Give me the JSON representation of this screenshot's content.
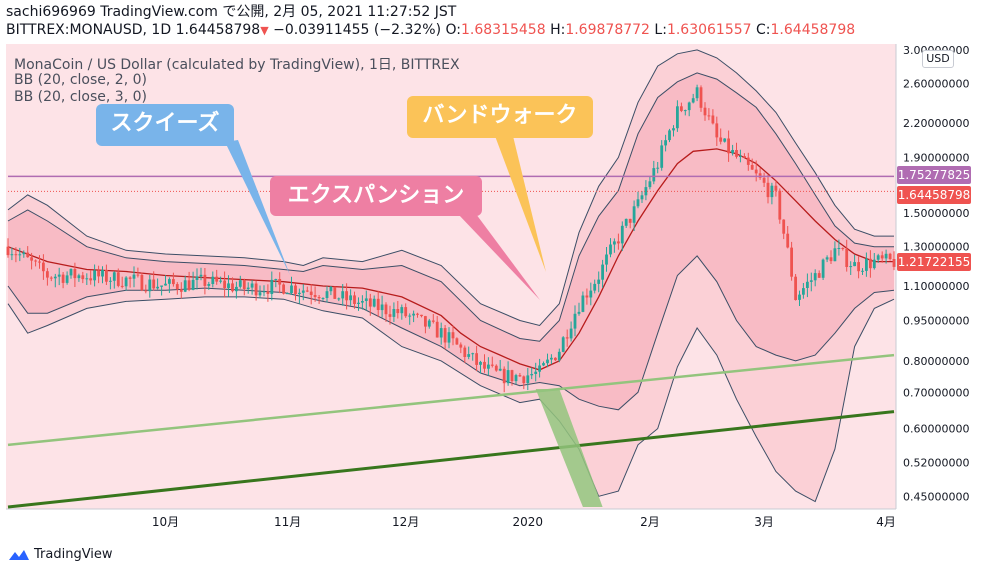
{
  "header": {
    "line1": "sachi696969 TradingView.com で公開, 2月 05, 2021 11:27:52 JST",
    "symbol": "BITTREX:MONAUSD, 1D 1.64458798",
    "change": "−0.03911455 (−2.32%)",
    "o_label": "O:",
    "o_value": "1.68315458",
    "h_label": "H:",
    "h_value": "1.69878772",
    "l_label": "L:",
    "l_value": "1.63061557",
    "c_label": "C:",
    "c_value": "1.64458798"
  },
  "legend": {
    "title": "MonaCoin / US Dollar (calculated by TradingView), 1日, BITTREX",
    "bb1": "BB (20, close, 2, 0)",
    "bb2": "BB (20, close, 3, 0)"
  },
  "annotations": {
    "squeeze": "スクイーズ",
    "expansion": "エクスパンション",
    "band_walk": "バンドウォーク"
  },
  "price_axis": {
    "currency": "USD",
    "tags": {
      "hline": "1.75277825",
      "close": "1.64458798",
      "mid": "1.21722155"
    }
  },
  "branding": {
    "logo_text": "TradingView"
  },
  "colors": {
    "background": "#fde3e7",
    "up": "#26a69a",
    "down": "#ef5350",
    "basis": "#b71c1c",
    "band_line": "#3c4e66",
    "hline": "#b06cb2",
    "trend_light": "#93c47d",
    "trend_dark": "#38761d"
  },
  "chart_data": {
    "type": "line",
    "scale": "log",
    "ylim": [
      0.43,
      3.05
    ],
    "yticks": [
      "3.00000000",
      "2.60000000",
      "2.20000000",
      "1.90000000",
      "1.50000000",
      "1.30000000",
      "1.10000000",
      "0.95000000",
      "0.80000000",
      "0.70000000",
      "0.60000000",
      "0.52000000",
      "0.45000000"
    ],
    "ytick_values": [
      3.0,
      2.6,
      2.2,
      1.9,
      1.5,
      1.3,
      1.1,
      0.95,
      0.8,
      0.7,
      0.6,
      0.52,
      0.45
    ],
    "xticks": [
      "10月",
      "11月",
      "12月",
      "2020",
      "2月",
      "3月",
      "4月"
    ],
    "xtick_days": [
      40,
      71,
      101,
      132,
      163,
      192,
      223
    ],
    "day_range": [
      0,
      225
    ],
    "horizontal_line": 1.75277825,
    "series": [
      {
        "name": "BB (20, close, 2, 0)",
        "kind": "basis",
        "points": [
          [
            0,
            1.3
          ],
          [
            10,
            1.22
          ],
          [
            20,
            1.18
          ],
          [
            30,
            1.17
          ],
          [
            40,
            1.15
          ],
          [
            50,
            1.14
          ],
          [
            60,
            1.13
          ],
          [
            70,
            1.12
          ],
          [
            80,
            1.1
          ],
          [
            90,
            1.09
          ],
          [
            100,
            1.05
          ],
          [
            110,
            0.97
          ],
          [
            115,
            0.9
          ],
          [
            120,
            0.85
          ],
          [
            125,
            0.82
          ],
          [
            130,
            0.79
          ],
          [
            135,
            0.77
          ],
          [
            140,
            0.8
          ],
          [
            145,
            0.9
          ],
          [
            150,
            1.05
          ],
          [
            155,
            1.25
          ],
          [
            160,
            1.45
          ],
          [
            165,
            1.65
          ],
          [
            170,
            1.85
          ],
          [
            174,
            1.95
          ],
          [
            180,
            1.97
          ],
          [
            185,
            1.93
          ],
          [
            190,
            1.85
          ],
          [
            195,
            1.72
          ],
          [
            200,
            1.58
          ],
          [
            205,
            1.45
          ],
          [
            210,
            1.34
          ],
          [
            215,
            1.26
          ],
          [
            220,
            1.22
          ],
          [
            225,
            1.22
          ]
        ]
      },
      {
        "name": "upper2",
        "kind": "band",
        "points": [
          [
            0,
            1.45
          ],
          [
            5,
            1.52
          ],
          [
            10,
            1.45
          ],
          [
            20,
            1.3
          ],
          [
            30,
            1.24
          ],
          [
            40,
            1.22
          ],
          [
            50,
            1.21
          ],
          [
            60,
            1.2
          ],
          [
            70,
            1.18
          ],
          [
            75,
            1.17
          ],
          [
            80,
            1.2
          ],
          [
            90,
            1.18
          ],
          [
            100,
            1.2
          ],
          [
            110,
            1.12
          ],
          [
            120,
            0.95
          ],
          [
            130,
            0.88
          ],
          [
            135,
            0.87
          ],
          [
            140,
            0.95
          ],
          [
            145,
            1.25
          ],
          [
            150,
            1.48
          ],
          [
            155,
            1.65
          ],
          [
            160,
            2.1
          ],
          [
            165,
            2.45
          ],
          [
            170,
            2.62
          ],
          [
            175,
            2.72
          ],
          [
            180,
            2.65
          ],
          [
            185,
            2.5
          ],
          [
            190,
            2.35
          ],
          [
            195,
            2.1
          ],
          [
            200,
            1.85
          ],
          [
            205,
            1.62
          ],
          [
            210,
            1.42
          ],
          [
            215,
            1.32
          ],
          [
            220,
            1.3
          ],
          [
            225,
            1.3
          ]
        ]
      },
      {
        "name": "lower2",
        "kind": "band",
        "points": [
          [
            0,
            1.1
          ],
          [
            5,
            0.98
          ],
          [
            10,
            0.98
          ],
          [
            20,
            1.05
          ],
          [
            30,
            1.08
          ],
          [
            40,
            1.08
          ],
          [
            50,
            1.09
          ],
          [
            60,
            1.08
          ],
          [
            70,
            1.07
          ],
          [
            80,
            1.03
          ],
          [
            90,
            1.0
          ],
          [
            100,
            0.92
          ],
          [
            110,
            0.85
          ],
          [
            120,
            0.76
          ],
          [
            130,
            0.72
          ],
          [
            135,
            0.73
          ],
          [
            140,
            0.72
          ],
          [
            145,
            0.68
          ],
          [
            150,
            0.66
          ],
          [
            155,
            0.65
          ],
          [
            160,
            0.7
          ],
          [
            165,
            0.9
          ],
          [
            170,
            1.15
          ],
          [
            175,
            1.25
          ],
          [
            180,
            1.12
          ],
          [
            185,
            0.95
          ],
          [
            190,
            0.85
          ],
          [
            195,
            0.82
          ],
          [
            200,
            0.8
          ],
          [
            205,
            0.82
          ],
          [
            210,
            0.9
          ],
          [
            215,
            1.0
          ],
          [
            220,
            1.07
          ],
          [
            225,
            1.08
          ]
        ]
      },
      {
        "name": "upper3",
        "kind": "band",
        "points": [
          [
            0,
            1.52
          ],
          [
            5,
            1.62
          ],
          [
            10,
            1.55
          ],
          [
            20,
            1.36
          ],
          [
            30,
            1.28
          ],
          [
            40,
            1.26
          ],
          [
            50,
            1.25
          ],
          [
            60,
            1.24
          ],
          [
            70,
            1.22
          ],
          [
            75,
            1.2
          ],
          [
            80,
            1.24
          ],
          [
            90,
            1.22
          ],
          [
            100,
            1.28
          ],
          [
            110,
            1.2
          ],
          [
            120,
            1.02
          ],
          [
            130,
            0.95
          ],
          [
            135,
            0.93
          ],
          [
            140,
            1.02
          ],
          [
            145,
            1.38
          ],
          [
            150,
            1.68
          ],
          [
            155,
            1.9
          ],
          [
            160,
            2.4
          ],
          [
            165,
            2.8
          ],
          [
            170,
            2.95
          ],
          [
            175,
            3.0
          ],
          [
            180,
            2.9
          ],
          [
            185,
            2.72
          ],
          [
            190,
            2.52
          ],
          [
            195,
            2.3
          ],
          [
            200,
            2.02
          ],
          [
            205,
            1.78
          ],
          [
            210,
            1.55
          ],
          [
            215,
            1.4
          ],
          [
            220,
            1.36
          ],
          [
            225,
            1.36
          ]
        ]
      },
      {
        "name": "lower3",
        "kind": "band",
        "points": [
          [
            0,
            1.02
          ],
          [
            5,
            0.9
          ],
          [
            10,
            0.93
          ],
          [
            20,
            1.0
          ],
          [
            30,
            1.03
          ],
          [
            40,
            1.04
          ],
          [
            50,
            1.05
          ],
          [
            60,
            1.05
          ],
          [
            70,
            1.04
          ],
          [
            80,
            0.99
          ],
          [
            90,
            0.96
          ],
          [
            100,
            0.85
          ],
          [
            110,
            0.8
          ],
          [
            120,
            0.72
          ],
          [
            130,
            0.67
          ],
          [
            135,
            0.68
          ],
          [
            140,
            0.62
          ],
          [
            145,
            0.55
          ],
          [
            150,
            0.45
          ],
          [
            155,
            0.46
          ],
          [
            160,
            0.56
          ],
          [
            165,
            0.6
          ],
          [
            170,
            0.78
          ],
          [
            175,
            0.92
          ],
          [
            180,
            0.82
          ],
          [
            185,
            0.68
          ],
          [
            190,
            0.58
          ],
          [
            195,
            0.5
          ],
          [
            200,
            0.46
          ],
          [
            205,
            0.44
          ],
          [
            210,
            0.55
          ],
          [
            215,
            0.85
          ],
          [
            220,
            1.0
          ],
          [
            225,
            1.04
          ]
        ]
      },
      {
        "name": "trend_light",
        "kind": "trend",
        "points": [
          [
            0,
            0.56
          ],
          [
            225,
            0.82
          ]
        ]
      },
      {
        "name": "trend_dark",
        "kind": "trend",
        "points": [
          [
            0,
            0.43
          ],
          [
            225,
            0.645
          ]
        ]
      }
    ],
    "candles_note_path": [
      [
        0,
        1.3
      ],
      [
        10,
        1.15
      ],
      [
        20,
        1.15
      ],
      [
        30,
        1.13
      ],
      [
        40,
        1.1
      ],
      [
        50,
        1.12
      ],
      [
        60,
        1.09
      ],
      [
        70,
        1.1
      ],
      [
        80,
        1.07
      ],
      [
        90,
        1.02
      ],
      [
        100,
        0.98
      ],
      [
        110,
        0.9
      ],
      [
        115,
        0.84
      ],
      [
        120,
        0.78
      ],
      [
        125,
        0.75
      ],
      [
        130,
        0.75
      ],
      [
        135,
        0.76
      ],
      [
        140,
        0.84
      ],
      [
        145,
        1.02
      ],
      [
        150,
        1.15
      ],
      [
        155,
        1.35
      ],
      [
        160,
        1.55
      ],
      [
        165,
        1.85
      ],
      [
        170,
        2.3
      ],
      [
        175,
        2.5
      ],
      [
        180,
        2.05
      ],
      [
        185,
        1.9
      ],
      [
        190,
        1.75
      ],
      [
        195,
        1.6
      ],
      [
        200,
        1.05
      ],
      [
        205,
        1.15
      ],
      [
        210,
        1.28
      ],
      [
        215,
        1.2
      ],
      [
        220,
        1.22
      ],
      [
        225,
        1.22
      ]
    ]
  }
}
